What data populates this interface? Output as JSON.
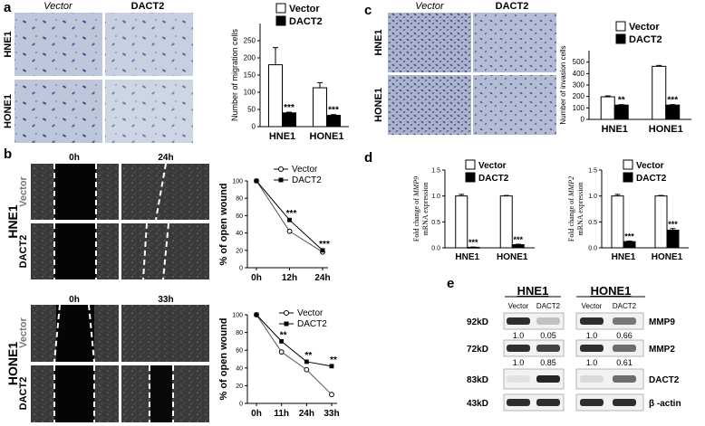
{
  "panel_letters": {
    "a": "a",
    "b": "b",
    "c": "c",
    "d": "d",
    "e": "e"
  },
  "headers": {
    "vector": "Vector",
    "dact2": "DACT2",
    "t0": "0h",
    "t24": "24h",
    "t33": "33h"
  },
  "row_labels": {
    "hne1": "HNE1",
    "hone1": "HONE1",
    "vector": "Vector",
    "dact2": "DACT2"
  },
  "colors": {
    "vector_fill": "#ffffff",
    "dact2_fill": "#000000",
    "micro_bg": "#b9c6d8",
    "cell_stain": "#4a4f8e",
    "wound_bg": "#2e2e2e"
  },
  "chart_data": [
    {
      "id": "a",
      "type": "bar",
      "ylabel": "Number of migration cells",
      "categories": [
        "HNE1",
        "HONE1"
      ],
      "ylim": [
        0,
        300
      ],
      "yticks": [
        0,
        50,
        100,
        150,
        200,
        250
      ],
      "series": [
        {
          "name": "Vector",
          "values": [
            180,
            113
          ],
          "errors": [
            50,
            15
          ]
        },
        {
          "name": "DACT2",
          "values": [
            40,
            33
          ],
          "errors": [
            2,
            2
          ]
        }
      ],
      "annotations": [
        "***",
        "***"
      ]
    },
    {
      "id": "c",
      "type": "bar",
      "ylabel": "Number of invasion cells",
      "categories": [
        "HNE1",
        "HONE1"
      ],
      "ylim": [
        0,
        600
      ],
      "yticks": [
        0,
        100,
        200,
        300,
        400,
        500
      ],
      "series": [
        {
          "name": "Vector",
          "values": [
            197,
            463
          ],
          "errors": [
            8,
            8
          ]
        },
        {
          "name": "DACT2",
          "values": [
            125,
            125
          ],
          "errors": [
            4,
            4
          ]
        }
      ],
      "annotations": [
        "**",
        "***"
      ]
    },
    {
      "id": "b1",
      "type": "line",
      "ylabel": "% of open wound",
      "x": [
        "0h",
        "12h",
        "24h"
      ],
      "ylim": [
        0,
        100
      ],
      "yticks": [
        0,
        20,
        40,
        60,
        80,
        100
      ],
      "series": [
        {
          "name": "Vector",
          "values": [
            100,
            42,
            18
          ]
        },
        {
          "name": "DACT2",
          "values": [
            100,
            55,
            20
          ]
        }
      ],
      "annotations": [
        "***",
        "***"
      ]
    },
    {
      "id": "b2",
      "type": "line",
      "ylabel": "% of open wound",
      "x": [
        "0h",
        "11h",
        "24h",
        "33h"
      ],
      "ylim": [
        0,
        100
      ],
      "yticks": [
        0,
        20,
        40,
        60,
        80,
        100
      ],
      "series": [
        {
          "name": "Vector",
          "values": [
            100,
            58,
            38,
            10
          ]
        },
        {
          "name": "DACT2",
          "values": [
            100,
            70,
            47,
            42
          ]
        }
      ],
      "annotations": [
        "**",
        "**",
        "**"
      ]
    },
    {
      "id": "d1",
      "type": "bar",
      "ylabel": "Fold change of MMP9 mRNA expression",
      "ylabel_line1": "Fold change of",
      "ylabel_gene": "MMP9",
      "ylabel_line2": "mRNA expression",
      "categories": [
        "HNE1",
        "HONE1"
      ],
      "ylim": [
        0,
        1.5
      ],
      "yticks": [
        0.0,
        0.5,
        1.0,
        1.5
      ],
      "series": [
        {
          "name": "Vector",
          "values": [
            1.0,
            1.0
          ],
          "errors": [
            0.03,
            0.01
          ]
        },
        {
          "name": "DACT2",
          "values": [
            0.01,
            0.06
          ],
          "errors": [
            0.005,
            0.01
          ]
        }
      ],
      "annotations": [
        "***",
        "***"
      ]
    },
    {
      "id": "d2",
      "type": "bar",
      "ylabel": "Fold change of MMP2 mRNA expression",
      "ylabel_line1": "Fold change of",
      "ylabel_gene": "MMP2",
      "ylabel_line2": "mRNA expression",
      "categories": [
        "HNE1",
        "HONE1"
      ],
      "ylim": [
        0,
        1.5
      ],
      "yticks": [
        0.0,
        0.5,
        1.0,
        1.5
      ],
      "series": [
        {
          "name": "Vector",
          "values": [
            1.0,
            1.0
          ],
          "errors": [
            0.03,
            0.01
          ]
        },
        {
          "name": "DACT2",
          "values": [
            0.12,
            0.34
          ],
          "errors": [
            0.01,
            0.03
          ]
        }
      ],
      "annotations": [
        "***",
        "***"
      ]
    }
  ],
  "western": {
    "groups": [
      "HNE1",
      "HONE1"
    ],
    "lanes": [
      "Vector",
      "DACT2",
      "Vector",
      "DACT2"
    ],
    "rows": [
      {
        "kd": "92kD",
        "protein": "MMP9",
        "intensity": [
          0.9,
          0.2,
          0.9,
          0.55
        ],
        "quant": [
          "1.0",
          "0.05",
          "1.0",
          "0.66"
        ]
      },
      {
        "kd": "72kD",
        "protein": "MMP2",
        "intensity": [
          0.9,
          0.8,
          0.9,
          0.6
        ],
        "quant": [
          "1.0",
          "0.85",
          "1.0",
          "0.61"
        ]
      },
      {
        "kd": "83kD",
        "protein": "DACT2",
        "intensity": [
          0.05,
          0.95,
          0.08,
          0.6
        ],
        "quant": []
      },
      {
        "kd": "43kD",
        "protein": "β -actin",
        "intensity": [
          0.9,
          0.9,
          0.9,
          0.9
        ],
        "quant": []
      }
    ]
  }
}
